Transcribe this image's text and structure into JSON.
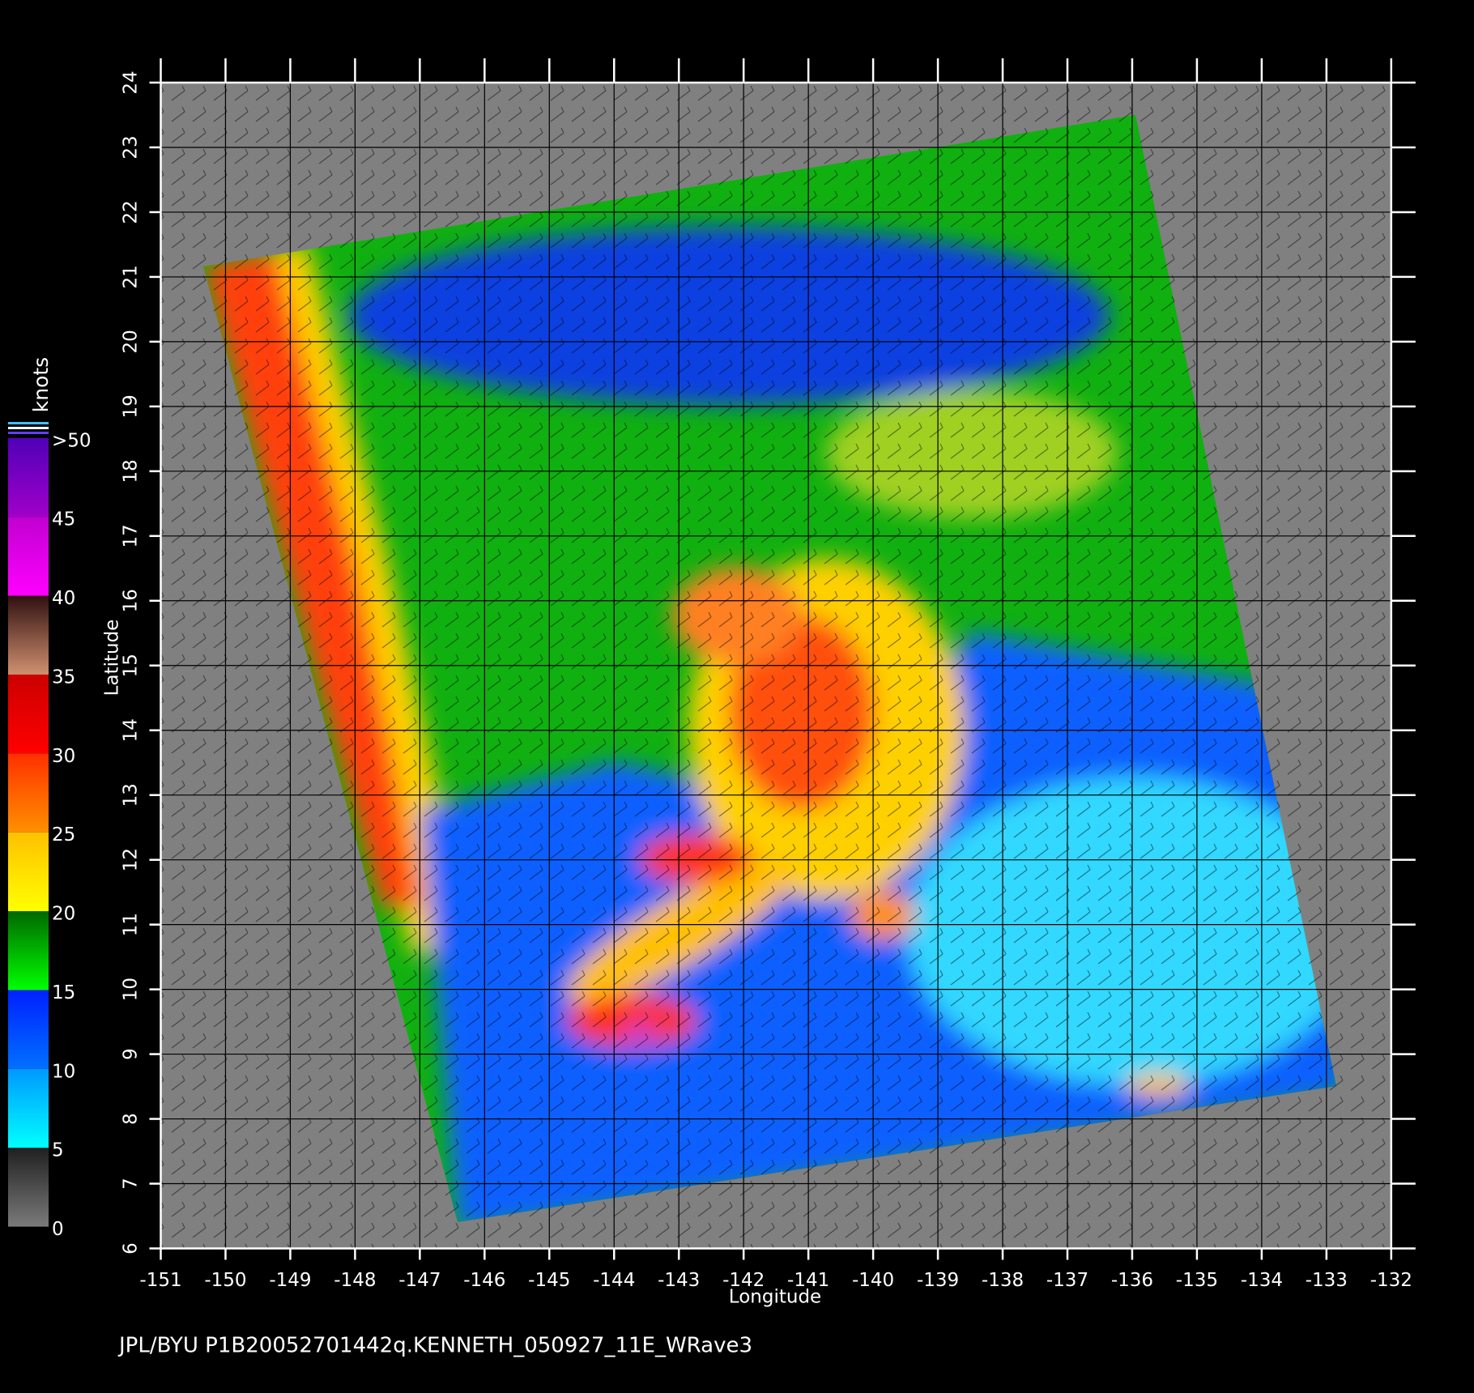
{
  "chart_data": {
    "type": "swath-map",
    "footer": "JPL/BYU  P1B20052701442q.KENNETH_050927_11E_WRave3",
    "x_label": "Longitude",
    "y_label": "Latitude",
    "xlim": [
      -151,
      -132
    ],
    "ylim": [
      6,
      24
    ],
    "xticks": [
      -151,
      -150,
      -149,
      -148,
      -147,
      -146,
      -145,
      -144,
      -143,
      -142,
      -141,
      -140,
      -139,
      -138,
      -137,
      -136,
      -135,
      -134,
      -133,
      -132
    ],
    "yticks": [
      6,
      7,
      8,
      9,
      10,
      11,
      12,
      13,
      14,
      15,
      16,
      17,
      18,
      19,
      20,
      21,
      22,
      23,
      24
    ],
    "grid": true,
    "colorbar": {
      "label": "knots",
      "ticks": [
        0,
        5,
        10,
        15,
        20,
        25,
        30,
        35,
        40,
        45,
        {
          "value": 50,
          "label": ">50"
        }
      ],
      "colors": [
        [
          "#7a7a7a",
          "#202020"
        ],
        [
          "#00ffff",
          "#0098ff"
        ],
        [
          "#0070ff",
          "#0020ff"
        ],
        [
          "#00ff00",
          "#006800"
        ],
        [
          "#ffff00",
          "#ffc000"
        ],
        [
          "#ff9000",
          "#ff3000"
        ],
        [
          "#ff0000",
          "#cc0000"
        ],
        [
          "#d09070",
          "#301010"
        ],
        [
          "#ff00ff",
          "#c000d0"
        ],
        [
          "#a000c8",
          "#5000b8"
        ]
      ]
    }
  }
}
